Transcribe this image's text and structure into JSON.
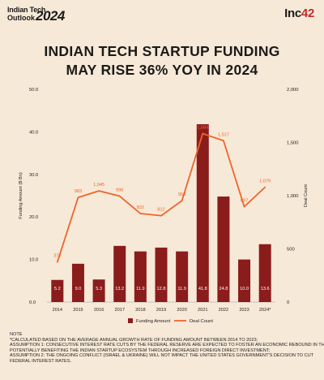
{
  "header": {
    "logo_line1": "Indian Tech",
    "logo_line2": "Outlook",
    "logo_year": "2024",
    "brand": "Inc",
    "brand_num": "42",
    "title_line1": "INDIAN TECH STARTUP FUNDING",
    "title_line2": "MAY RISE 36% YOY IN 2024"
  },
  "chart_data": {
    "type": "bar+line",
    "categories": [
      "2014",
      "2015",
      "2016",
      "2017",
      "2018",
      "2019",
      "2020",
      "2021",
      "2022",
      "2023",
      "2024*"
    ],
    "series": [
      {
        "name": "Funding Amount",
        "type": "bar",
        "axis": "left",
        "values": [
          5.2,
          9.0,
          5.3,
          13.2,
          11.9,
          12.8,
          11.9,
          41.8,
          24.8,
          10.0,
          13.6
        ],
        "labels": [
          "5.2",
          "9.0",
          "5.3",
          "13.2",
          "11.9",
          "12.8",
          "11.9",
          "41.8",
          "24.8",
          "10.0",
          "13.6"
        ],
        "color": "#8b1c1c"
      },
      {
        "name": "Deal Count",
        "type": "line",
        "axis": "right",
        "values": [
          376,
          983,
          1045,
          996,
          832,
          812,
          953,
          1584,
          1517,
          897,
          1079
        ],
        "labels": [
          "376",
          "983",
          "1,045",
          "996",
          "832",
          "812",
          "953",
          "1,584",
          "1,517",
          "897",
          "1,079"
        ],
        "color": "#f0642c"
      }
    ],
    "ylabel": "Funding Amount ($ Bn)",
    "y2label": "Deal Count",
    "ylim": [
      0,
      50
    ],
    "y2lim": [
      0,
      2000
    ],
    "yticks": [
      "0.0",
      "10.0",
      "20.0",
      "30.0",
      "40.0",
      "50.0"
    ],
    "y2ticks": [
      "0",
      "500",
      "1,000",
      "1,500",
      "2,000"
    ],
    "legend_position": "bottom",
    "grid": false
  },
  "note": {
    "heading": "NOTE",
    "lines": [
      "*CALCULATED BASED ON THE AVERAGE ANNUAL GROWTH RATE OF FUNDING AMOUNT BETWEEN 2014 TO 2023;",
      "ASSUMPTION 1: CONSECUTIVE INTEREST RATE CUTS BY THE FEDERAL RESERVE ARE EXPECTED TO FOSTER AN ECONOMIC REBOUND IN THE US,",
      "POTENTIALLY BENEFITING THE INDIAN STARTUP ECOSYSTEM THROUGH INCREASED FOREIGN DIRECT INVESTMENT;",
      "ASSUMPTION 2: THE ONGOING CONFLICT (ISRAEL & UKRAINE) WILL NOT IMPACT THE UNITED STATES GOVERNMENT'S DECISION TO CUT",
      "FEDERAL INTEREST RATES."
    ]
  }
}
